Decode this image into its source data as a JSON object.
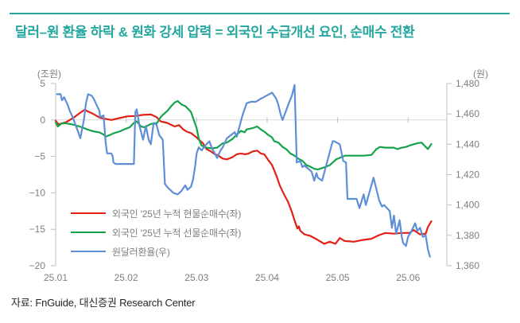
{
  "title": "달러–원 환율 하락 & 원화 강세 압력 = 외국인 수급개선 요인, 순매수 전환",
  "source": "자료: FnGuide, 대신증권 Research Center",
  "accent_color": "#23a79e",
  "chart_data": {
    "type": "line",
    "title": "",
    "grid": "zero-line only",
    "legend_position": "inside lower-left",
    "left_axis": {
      "unit": "(조원)",
      "min": -20,
      "max": 5,
      "tick_values": [
        5,
        0,
        -5,
        -10,
        -15,
        -20
      ],
      "tick_labels": [
        "5",
        "0",
        "−5",
        "−10",
        "−15",
        "−20"
      ]
    },
    "right_axis": {
      "unit": "(원)",
      "min": 1360,
      "max": 1480,
      "tick_values": [
        1480,
        1460,
        1440,
        1420,
        1400,
        1380,
        1360
      ],
      "tick_labels": [
        "1,480",
        "1,460",
        "1,440",
        "1,420",
        "1,400",
        "1,380",
        "1,360"
      ]
    },
    "x_axis": {
      "labels": [
        "25.01",
        "25.02",
        "25.03",
        "25.04",
        "25.05",
        "25.06"
      ],
      "label_positions": [
        0,
        1,
        2,
        3,
        4,
        5
      ],
      "range": [
        0,
        5.55
      ]
    },
    "series": [
      {
        "name": "외국인 '25년 누적 현물순매수(좌)",
        "axis": "left",
        "color": "#e32017",
        "points": [
          [
            0.0,
            -0.1
          ],
          [
            0.04,
            -0.6
          ],
          [
            0.15,
            -0.3
          ],
          [
            0.25,
            0.3
          ],
          [
            0.35,
            1.0
          ],
          [
            0.41,
            1.4
          ],
          [
            0.52,
            0.9
          ],
          [
            0.63,
            0.3
          ],
          [
            0.71,
            0.15
          ],
          [
            0.79,
            0.0
          ],
          [
            0.9,
            0.25
          ],
          [
            1.02,
            0.5
          ],
          [
            1.13,
            0.55
          ],
          [
            1.24,
            0.7
          ],
          [
            1.35,
            0.75
          ],
          [
            1.43,
            0.4
          ],
          [
            1.49,
            -0.2
          ],
          [
            1.58,
            -0.4
          ],
          [
            1.69,
            -0.9
          ],
          [
            1.75,
            -0.7
          ],
          [
            1.81,
            -1.3
          ],
          [
            1.86,
            -1.6
          ],
          [
            1.92,
            -1.8
          ],
          [
            2.0,
            -2.4
          ],
          [
            2.03,
            -2.7
          ],
          [
            2.09,
            -3.2
          ],
          [
            2.14,
            -4.0
          ],
          [
            2.2,
            -4.3
          ],
          [
            2.26,
            -4.7
          ],
          [
            2.31,
            -4.9
          ],
          [
            2.37,
            -5.3
          ],
          [
            2.43,
            -5.4
          ],
          [
            2.51,
            -5.1
          ],
          [
            2.57,
            -4.7
          ],
          [
            2.63,
            -4.6
          ],
          [
            2.69,
            -4.7
          ],
          [
            2.74,
            -4.6
          ],
          [
            2.8,
            -4.3
          ],
          [
            2.86,
            -4.2
          ],
          [
            2.91,
            -4.6
          ],
          [
            2.96,
            -4.7
          ],
          [
            3.01,
            -5.4
          ],
          [
            3.07,
            -6.2
          ],
          [
            3.13,
            -7.6
          ],
          [
            3.18,
            -9.0
          ],
          [
            3.24,
            -10.2
          ],
          [
            3.3,
            -11.3
          ],
          [
            3.35,
            -12.6
          ],
          [
            3.39,
            -13.8
          ],
          [
            3.43,
            -14.9
          ],
          [
            3.45,
            -14.6
          ],
          [
            3.47,
            -15.2
          ],
          [
            3.53,
            -15.7
          ],
          [
            3.61,
            -15.9
          ],
          [
            3.69,
            -16.3
          ],
          [
            3.81,
            -17.0
          ],
          [
            3.89,
            -16.7
          ],
          [
            3.97,
            -17.0
          ],
          [
            4.03,
            -16.2
          ],
          [
            4.1,
            -16.6
          ],
          [
            4.23,
            -16.7
          ],
          [
            4.34,
            -16.5
          ],
          [
            4.48,
            -16.3
          ],
          [
            4.59,
            -15.8
          ],
          [
            4.68,
            -15.5
          ],
          [
            4.8,
            -15.6
          ],
          [
            4.91,
            -15.5
          ],
          [
            5.02,
            -15.5
          ],
          [
            5.08,
            -15.1
          ],
          [
            5.17,
            -15.7
          ],
          [
            5.25,
            -15.6
          ],
          [
            5.28,
            -14.7
          ],
          [
            5.33,
            -13.9
          ]
        ]
      },
      {
        "name": "외국인 '25년 누적 선물순매수(좌)",
        "axis": "left",
        "color": "#16a24b",
        "points": [
          [
            0.0,
            -0.3
          ],
          [
            0.03,
            -0.9
          ],
          [
            0.08,
            -0.5
          ],
          [
            0.14,
            -0.45
          ],
          [
            0.23,
            -0.6
          ],
          [
            0.29,
            -0.75
          ],
          [
            0.34,
            -0.9
          ],
          [
            0.4,
            -1.1
          ],
          [
            0.45,
            -1.3
          ],
          [
            0.51,
            -1.5
          ],
          [
            0.56,
            -1.6
          ],
          [
            0.62,
            -1.7
          ],
          [
            0.68,
            -2.0
          ],
          [
            0.71,
            -2.3
          ],
          [
            0.76,
            -2.1
          ],
          [
            0.83,
            -1.8
          ],
          [
            0.9,
            -1.6
          ],
          [
            0.97,
            -1.3
          ],
          [
            1.05,
            -1.0
          ],
          [
            1.11,
            -0.4
          ],
          [
            1.15,
            -0.2
          ],
          [
            1.21,
            -0.9
          ],
          [
            1.26,
            -1.0
          ],
          [
            1.35,
            -0.55
          ],
          [
            1.44,
            -0.4
          ],
          [
            1.49,
            0.4
          ],
          [
            1.52,
            0.7
          ],
          [
            1.58,
            1.2
          ],
          [
            1.64,
            1.9
          ],
          [
            1.69,
            2.4
          ],
          [
            1.73,
            2.6
          ],
          [
            1.79,
            2.1
          ],
          [
            1.84,
            1.9
          ],
          [
            1.92,
            1.1
          ],
          [
            2.0,
            -1.1
          ],
          [
            2.03,
            -2.6
          ],
          [
            2.07,
            -3.5
          ],
          [
            2.14,
            -3.8
          ],
          [
            2.22,
            -3.9
          ],
          [
            2.29,
            -3.8
          ],
          [
            2.37,
            -3.2
          ],
          [
            2.43,
            -3.1
          ],
          [
            2.51,
            -2.6
          ],
          [
            2.57,
            -2.0
          ],
          [
            2.63,
            -1.5
          ],
          [
            2.68,
            -1.7
          ],
          [
            2.71,
            -1.3
          ],
          [
            2.8,
            -1.1
          ],
          [
            2.86,
            -0.9
          ],
          [
            2.91,
            -1.3
          ],
          [
            2.96,
            -1.6
          ],
          [
            3.01,
            -2.0
          ],
          [
            3.07,
            -2.4
          ],
          [
            3.1,
            -2.9
          ],
          [
            3.16,
            -3.1
          ],
          [
            3.22,
            -3.7
          ],
          [
            3.27,
            -4.0
          ],
          [
            3.33,
            -4.6
          ],
          [
            3.39,
            -4.9
          ],
          [
            3.44,
            -5.3
          ],
          [
            3.5,
            -5.6
          ],
          [
            3.56,
            -6.2
          ],
          [
            3.61,
            -6.4
          ],
          [
            3.67,
            -6.7
          ],
          [
            3.72,
            -6.8
          ],
          [
            3.84,
            -6.4
          ],
          [
            3.89,
            -6.2
          ],
          [
            3.98,
            -5.4
          ],
          [
            4.1,
            -4.9
          ],
          [
            4.23,
            -4.9
          ],
          [
            4.36,
            -4.9
          ],
          [
            4.48,
            -4.8
          ],
          [
            4.55,
            -4.0
          ],
          [
            4.6,
            -3.7
          ],
          [
            4.68,
            -3.8
          ],
          [
            4.8,
            -3.8
          ],
          [
            4.85,
            -4.0
          ],
          [
            4.91,
            -3.8
          ],
          [
            4.97,
            -3.7
          ],
          [
            5.02,
            -3.5
          ],
          [
            5.13,
            -3.2
          ],
          [
            5.19,
            -3.1
          ],
          [
            5.25,
            -3.7
          ],
          [
            5.28,
            -4.0
          ],
          [
            5.33,
            -3.3
          ]
        ]
      },
      {
        "name": "원달러환율(우)",
        "axis": "right",
        "color": "#5f8ed8",
        "points": [
          [
            0.02,
            1473
          ],
          [
            0.07,
            1473
          ],
          [
            0.09,
            1469
          ],
          [
            0.12,
            1471
          ],
          [
            0.17,
            1466
          ],
          [
            0.2,
            1462
          ],
          [
            0.24,
            1458
          ],
          [
            0.28,
            1453
          ],
          [
            0.32,
            1448
          ],
          [
            0.35,
            1444
          ],
          [
            0.4,
            1456
          ],
          [
            0.43,
            1467
          ],
          [
            0.46,
            1473
          ],
          [
            0.51,
            1472
          ],
          [
            0.54,
            1470
          ],
          [
            0.58,
            1466
          ],
          [
            0.62,
            1462
          ],
          [
            0.63,
            1458
          ],
          [
            0.68,
            1459
          ],
          [
            0.71,
            1441
          ],
          [
            0.73,
            1434
          ],
          [
            0.79,
            1434
          ],
          [
            0.81,
            1432
          ],
          [
            0.82,
            1428
          ],
          [
            0.85,
            1427
          ],
          [
            1.11,
            1427
          ],
          [
            1.13,
            1461
          ],
          [
            1.15,
            1463
          ],
          [
            1.19,
            1452
          ],
          [
            1.24,
            1443
          ],
          [
            1.28,
            1452
          ],
          [
            1.32,
            1443
          ],
          [
            1.35,
            1440
          ],
          [
            1.39,
            1454
          ],
          [
            1.43,
            1453
          ],
          [
            1.47,
            1446
          ],
          [
            1.52,
            1443
          ],
          [
            1.55,
            1414
          ],
          [
            1.58,
            1412
          ],
          [
            1.67,
            1408
          ],
          [
            1.73,
            1407
          ],
          [
            1.78,
            1409
          ],
          [
            1.84,
            1413
          ],
          [
            1.87,
            1410
          ],
          [
            1.92,
            1412
          ],
          [
            1.95,
            1417
          ],
          [
            1.98,
            1426
          ],
          [
            2.0,
            1434
          ],
          [
            2.03,
            1438
          ],
          [
            2.07,
            1436
          ],
          [
            2.14,
            1440
          ],
          [
            2.18,
            1442
          ],
          [
            2.22,
            1437
          ],
          [
            2.26,
            1434
          ],
          [
            2.29,
            1431
          ],
          [
            2.34,
            1436
          ],
          [
            2.37,
            1438
          ],
          [
            2.4,
            1441
          ],
          [
            2.43,
            1444
          ],
          [
            2.54,
            1448
          ],
          [
            2.57,
            1445
          ],
          [
            2.65,
            1459
          ],
          [
            2.71,
            1467
          ],
          [
            2.77,
            1468
          ],
          [
            2.84,
            1468
          ],
          [
            2.91,
            1470
          ],
          [
            2.99,
            1472
          ],
          [
            3.07,
            1474
          ],
          [
            3.13,
            1470
          ],
          [
            3.16,
            1466
          ],
          [
            3.19,
            1460
          ],
          [
            3.22,
            1456
          ],
          [
            3.3,
            1466
          ],
          [
            3.35,
            1472
          ],
          [
            3.39,
            1479
          ],
          [
            3.42,
            1428
          ],
          [
            3.47,
            1429
          ],
          [
            3.5,
            1425
          ],
          [
            3.53,
            1426
          ],
          [
            3.58,
            1424
          ],
          [
            3.63,
            1422
          ],
          [
            3.67,
            1416
          ],
          [
            3.7,
            1421
          ],
          [
            3.72,
            1418
          ],
          [
            3.78,
            1416
          ],
          [
            3.93,
            1442
          ],
          [
            3.95,
            1442
          ],
          [
            4.03,
            1440
          ],
          [
            4.08,
            1429
          ],
          [
            4.12,
            1428
          ],
          [
            4.14,
            1404
          ],
          [
            4.2,
            1404
          ],
          [
            4.27,
            1404
          ],
          [
            4.31,
            1398
          ],
          [
            4.37,
            1407
          ],
          [
            4.4,
            1400
          ],
          [
            4.51,
            1418
          ],
          [
            4.59,
            1403
          ],
          [
            4.63,
            1399
          ],
          [
            4.66,
            1400
          ],
          [
            4.74,
            1396
          ],
          [
            4.77,
            1385
          ],
          [
            4.8,
            1393
          ],
          [
            4.83,
            1381
          ],
          [
            4.88,
            1390
          ],
          [
            4.91,
            1379
          ],
          [
            4.93,
            1375
          ],
          [
            4.97,
            1373
          ],
          [
            5.0,
            1379
          ],
          [
            5.04,
            1382
          ],
          [
            5.1,
            1388
          ],
          [
            5.13,
            1383
          ],
          [
            5.17,
            1385
          ],
          [
            5.21,
            1379
          ],
          [
            5.25,
            1380
          ],
          [
            5.28,
            1371
          ],
          [
            5.31,
            1366
          ]
        ]
      }
    ]
  }
}
